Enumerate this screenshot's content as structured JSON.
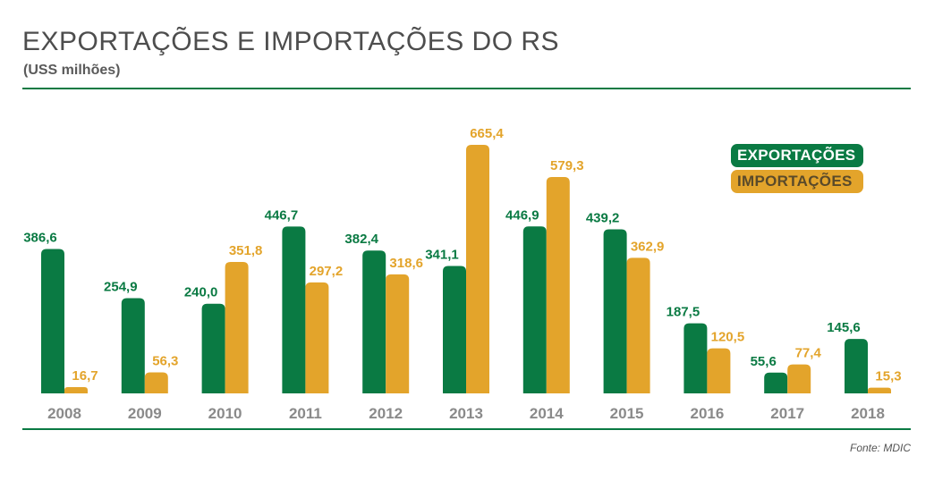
{
  "colors": {
    "exports": "#0a7a43",
    "imports": "#e3a42b",
    "year_label": "#8a8a8a",
    "rule": "#0a7a43"
  },
  "header": {
    "title": "EXPORTAÇÕES E IMPORTAÇÕES DO RS",
    "subtitle": "(USS milhões)"
  },
  "source": "Fonte: MDIC",
  "chart_data": {
    "type": "bar",
    "title": "EXPORTAÇÕES E IMPORTAÇÕES DO RS",
    "subtitle": "(USS milhões)",
    "categories": [
      "2008",
      "2009",
      "2010",
      "2011",
      "2012",
      "2013",
      "2014",
      "2015",
      "2016",
      "2017",
      "2018"
    ],
    "series": [
      {
        "name": "EXPORTAÇÕES",
        "values": [
          386.6,
          254.9,
          240.0,
          446.7,
          382.4,
          341.1,
          446.9,
          439.2,
          187.5,
          55.6,
          145.6
        ],
        "labels": [
          "386,6",
          "254,9",
          "240,0",
          "446,7",
          "382,4",
          "341,1",
          "446,9",
          "439,2",
          "187,5",
          "55,6",
          "145,6"
        ]
      },
      {
        "name": "IMPORTAÇÕES",
        "values": [
          16.7,
          56.3,
          351.8,
          297.2,
          318.6,
          665.4,
          579.3,
          362.9,
          120.5,
          77.4,
          15.3
        ],
        "labels": [
          "16,7",
          "56,3",
          "351,8",
          "297,2",
          "318,6",
          "665,4",
          "579,3",
          "362,9",
          "120,5",
          "77,4",
          "15,3"
        ]
      }
    ],
    "ylim": [
      0,
      665.4
    ],
    "grid": false,
    "legend_position": "top-right"
  }
}
